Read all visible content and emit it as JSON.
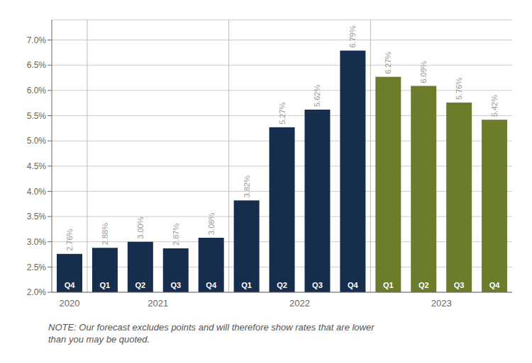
{
  "chart_data": {
    "type": "bar",
    "categories": [
      "Q4",
      "Q1",
      "Q2",
      "Q3",
      "Q4",
      "Q1",
      "Q2",
      "Q3",
      "Q4",
      "Q1",
      "Q2",
      "Q3",
      "Q4"
    ],
    "group_labels": [
      "2020",
      "2021",
      "2022",
      "2023"
    ],
    "values": [
      2.76,
      2.88,
      3.0,
      2.87,
      3.08,
      3.82,
      5.27,
      5.62,
      6.79,
      6.27,
      6.09,
      5.76,
      5.42
    ],
    "value_labels": [
      "2.76%",
      "2.88%",
      "3.00%",
      "2.87%",
      "3.08%",
      "3.82%",
      "5.27%",
      "5.62%",
      "6.79%",
      "6.27%",
      "6.09%",
      "5.76%",
      "5.42%"
    ],
    "colors": [
      "#162d4e",
      "#162d4e",
      "#162d4e",
      "#162d4e",
      "#162d4e",
      "#162d4e",
      "#162d4e",
      "#162d4e",
      "#162d4e",
      "#6b7c2b",
      "#6b7c2b",
      "#6b7c2b",
      "#6b7c2b"
    ],
    "data_labels": true,
    "ylim": [
      2.0,
      7.4
    ],
    "yticks": [
      {
        "value": 2.0,
        "label": "2.0%"
      },
      {
        "value": 2.5,
        "label": "2.5%"
      },
      {
        "value": 3.0,
        "label": "3.0%"
      },
      {
        "value": 3.5,
        "label": "3.5%"
      },
      {
        "value": 4.0,
        "label": "4.0%"
      },
      {
        "value": 4.5,
        "label": "4.5%"
      },
      {
        "value": 5.0,
        "label": "5.0%"
      },
      {
        "value": 5.5,
        "label": "5.5%"
      },
      {
        "value": 6.0,
        "label": "6.0%"
      },
      {
        "value": 6.5,
        "label": "6.5%"
      },
      {
        "value": 7.0,
        "label": "7.0%"
      }
    ],
    "grid": true,
    "annotation": "NOTE: Our forecast excludes points and will therefore show rates that are lower\nthan you may be quoted."
  }
}
